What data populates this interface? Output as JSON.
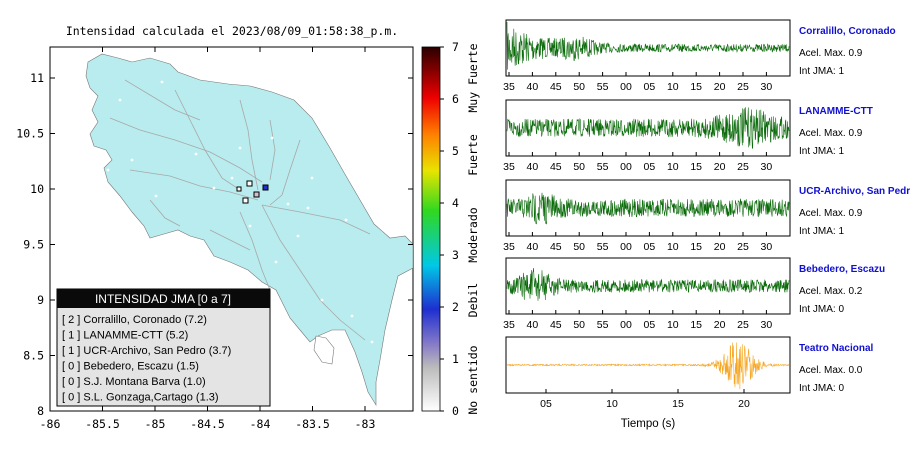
{
  "map": {
    "title": "Intensidad calculada el 2023/08/09_01:58:38_p.m.",
    "yticks": [
      "11",
      "10.5",
      "10",
      "9.5",
      "9",
      "8.5",
      "8"
    ],
    "xticks": [
      "-86",
      "-85.5",
      "-85",
      "-84.5",
      "-84",
      "-83.5",
      "-83"
    ],
    "land_color": "#b8ecee",
    "legend": {
      "header": "INTENSIDAD JMA [0 a 7]",
      "items": [
        "[ 2 ]  Corralillo, Coronado (7.2)",
        "[ 1 ]  LANAMME-CTT (5.2)",
        "[ 1 ]  UCR-Archivo, San Pedro (3.7)",
        "[ 0 ]  Bebedero, Escazu (1.5)",
        "[ 0 ]  S.J. Montana Barva (1.0)",
        "[ 0 ]  S.L. Gonzaga,Cartago (1.3)"
      ]
    }
  },
  "colorbar": {
    "ticks": [
      "7",
      "6",
      "5",
      "4",
      "3",
      "2",
      "1",
      "0"
    ],
    "labels": [
      "Muy Fuerte",
      "Fuerte",
      "Moderado",
      "Debil",
      "No sentido"
    ]
  },
  "waveforms": [
    {
      "name": "Corralillo, Coronado",
      "accel": "Acel. Max. 0.9",
      "intensity": "Int JMA: 1",
      "color": "#0b6b0b",
      "axis": [
        "35",
        "40",
        "45",
        "50",
        "55",
        "00",
        "05",
        "10",
        "15",
        "20",
        "25",
        "30"
      ]
    },
    {
      "name": "LANAMME-CTT",
      "accel": "Acel. Max. 0.9",
      "intensity": "Int JMA: 1",
      "color": "#0b6b0b",
      "axis": [
        "35",
        "40",
        "45",
        "50",
        "55",
        "00",
        "05",
        "10",
        "15",
        "20",
        "25",
        "30"
      ]
    },
    {
      "name": "UCR-Archivo, San Pedro",
      "accel": "Acel. Max. 0.9",
      "intensity": "Int JMA: 1",
      "color": "#0b6b0b",
      "axis": [
        "35",
        "40",
        "45",
        "50",
        "55",
        "00",
        "05",
        "10",
        "15",
        "20",
        "25",
        "30"
      ]
    },
    {
      "name": "Bebedero, Escazu",
      "accel": "Acel. Max. 0.2",
      "intensity": "Int JMA: 0",
      "color": "#0b6b0b",
      "axis": [
        "35",
        "40",
        "45",
        "50",
        "55",
        "00",
        "05",
        "10",
        "15",
        "20",
        "25",
        "30"
      ]
    },
    {
      "name": "Teatro Nacional",
      "accel": "Acel. Max. 0.0",
      "intensity": "Int JMA: 0",
      "color": "#f5a623",
      "axis": [
        "05",
        "10",
        "15",
        "20"
      ]
    }
  ],
  "xlabel": "Tiempo (s)"
}
